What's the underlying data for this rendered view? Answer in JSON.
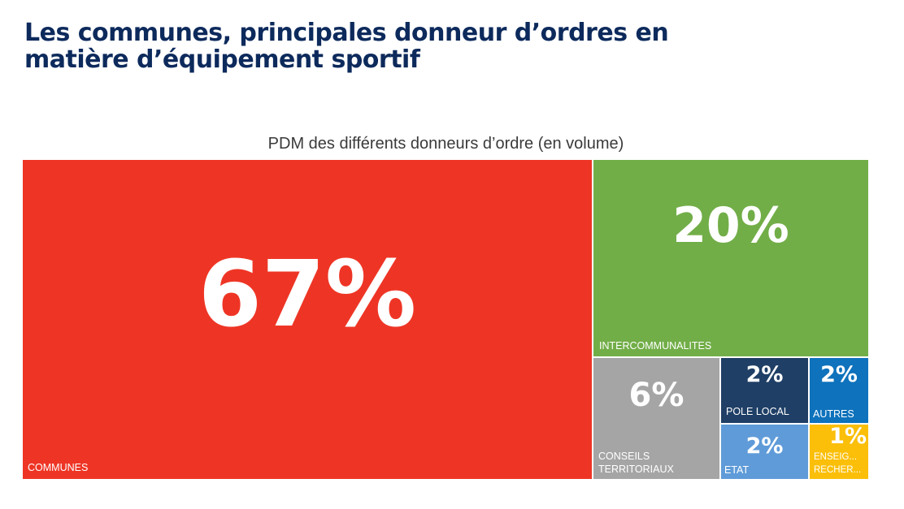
{
  "page": {
    "title": "Les communes, principales donneur d’ordres en matière d’équipement sportif"
  },
  "chart_data": {
    "type": "treemap",
    "title": "PDM des différents donneurs d’ordre (en volume)",
    "unit": "%",
    "series": [
      {
        "name": "COMMUNES",
        "value": 67,
        "label": "67%",
        "color": "#ee3525"
      },
      {
        "name": "INTERCOMMUNALITES",
        "value": 20,
        "label": "20%",
        "color": "#72ae48"
      },
      {
        "name": "CONSEILS TERRITORIAUX",
        "value": 6,
        "label": "6%",
        "color": "#a5a5a5"
      },
      {
        "name": "POLE LOCAL",
        "value": 2,
        "label": "2%",
        "color": "#1f3f66"
      },
      {
        "name": "AUTRES",
        "value": 2,
        "label": "2%",
        "color": "#0e72bc"
      },
      {
        "name": "ETAT",
        "value": 2,
        "label": "2%",
        "color": "#5f9bd8"
      },
      {
        "name": "ENSEIG... RECHER...",
        "value": 1,
        "label": "1%",
        "color": "#fbbf0a"
      }
    ]
  }
}
